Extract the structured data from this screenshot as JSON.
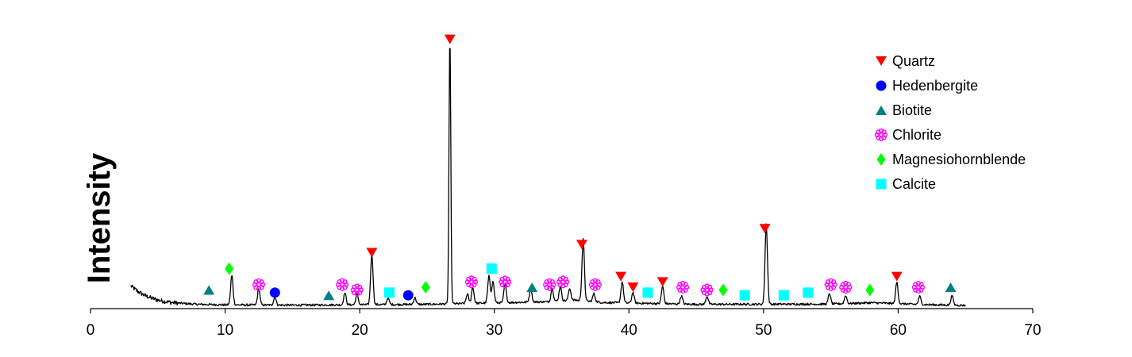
{
  "chart_data": {
    "type": "line",
    "title": "",
    "xlabel": "",
    "ylabel": "Intensity",
    "xlim": [
      0,
      70
    ],
    "ylim": [
      0,
      100
    ],
    "x_ticks": [
      "0",
      "10",
      "20",
      "30",
      "40",
      "50",
      "60",
      "70"
    ],
    "y_ticks_shown": false,
    "grid": false,
    "legend_position": "top-right",
    "pattern_x_range": [
      3,
      65
    ],
    "background": {
      "decay": [
        [
          3,
          8.5
        ],
        [
          3.5,
          6.5
        ],
        [
          4,
          5.0
        ],
        [
          4.5,
          4.0
        ],
        [
          5,
          3.2
        ],
        [
          5.5,
          2.7
        ],
        [
          6,
          2.3
        ],
        [
          7,
          1.9
        ],
        [
          8,
          1.6
        ],
        [
          10,
          1.4
        ],
        [
          15,
          1.3
        ],
        [
          25,
          1.6
        ],
        [
          34,
          2.6
        ],
        [
          36,
          3.2
        ],
        [
          38,
          2.3
        ],
        [
          45,
          1.6
        ],
        [
          55,
          1.7
        ],
        [
          58,
          2.2
        ],
        [
          62,
          1.5
        ],
        [
          65,
          1.2
        ]
      ]
    },
    "pattern_peaks": [
      {
        "x": 10.5,
        "y": 11
      },
      {
        "x": 12.5,
        "y": 6
      },
      {
        "x": 13.7,
        "y": 3
      },
      {
        "x": 18.9,
        "y": 4.5
      },
      {
        "x": 19.8,
        "y": 4
      },
      {
        "x": 20.9,
        "y": 19
      },
      {
        "x": 22.1,
        "y": 2.5
      },
      {
        "x": 24.1,
        "y": 2.5
      },
      {
        "x": 26.7,
        "y": 100
      },
      {
        "x": 28.0,
        "y": 3.5
      },
      {
        "x": 28.4,
        "y": 6
      },
      {
        "x": 29.6,
        "y": 10
      },
      {
        "x": 29.9,
        "y": 8
      },
      {
        "x": 30.8,
        "y": 7
      },
      {
        "x": 32.7,
        "y": 5
      },
      {
        "x": 34.3,
        "y": 5
      },
      {
        "x": 34.9,
        "y": 5.5
      },
      {
        "x": 35.6,
        "y": 4.5
      },
      {
        "x": 36.6,
        "y": 23
      },
      {
        "x": 37.4,
        "y": 3
      },
      {
        "x": 39.5,
        "y": 8
      },
      {
        "x": 40.3,
        "y": 4
      },
      {
        "x": 42.5,
        "y": 6.5
      },
      {
        "x": 43.9,
        "y": 3
      },
      {
        "x": 45.8,
        "y": 3
      },
      {
        "x": 50.2,
        "y": 30
      },
      {
        "x": 54.9,
        "y": 4
      },
      {
        "x": 56.1,
        "y": 3
      },
      {
        "x": 59.9,
        "y": 8
      },
      {
        "x": 61.6,
        "y": 3
      },
      {
        "x": 64.0,
        "y": 3.5
      }
    ],
    "phase_markers": [
      {
        "phase": "Quartz",
        "x": [
          20.9,
          26.7,
          36.5,
          39.4,
          40.3,
          42.5,
          50.1,
          59.9
        ],
        "y": [
          21,
          101,
          24,
          12,
          8,
          10,
          30,
          12
        ]
      },
      {
        "phase": "Hedenbergite",
        "x": [
          13.7,
          23.6
        ],
        "y": [
          6,
          5
        ]
      },
      {
        "phase": "Biotite",
        "x": [
          8.8,
          17.7,
          32.8,
          63.9
        ],
        "y": [
          7,
          5,
          8,
          8
        ]
      },
      {
        "phase": "Chlorite",
        "x": [
          12.5,
          18.7,
          19.8,
          28.3,
          30.8,
          34.1,
          35.1,
          37.5,
          44.0,
          45.8,
          55.0,
          56.1,
          61.5
        ],
        "y": [
          9,
          9,
          7,
          10,
          10,
          9,
          10,
          9,
          8,
          7,
          9,
          8,
          8
        ]
      },
      {
        "phase": "Magnesiohornblende",
        "x": [
          10.3,
          24.9,
          47.0,
          57.9
        ],
        "y": [
          15,
          8,
          7,
          7
        ]
      },
      {
        "phase": "Calcite",
        "x": [
          22.2,
          29.8,
          41.4,
          48.6,
          51.5,
          53.3
        ],
        "y": [
          6,
          15,
          6,
          5,
          5,
          6
        ]
      }
    ],
    "legend": [
      {
        "label": "Quartz",
        "symbol": "triangle-down",
        "color": "#ff0000"
      },
      {
        "label": "Hedenbergite",
        "symbol": "circle",
        "color": "#0000ff"
      },
      {
        "label": "Biotite",
        "symbol": "triangle-up",
        "color": "#008080"
      },
      {
        "label": "Chlorite",
        "symbol": "flower",
        "color": "#ff00ff"
      },
      {
        "label": "Magnesiohornblende",
        "symbol": "diamond",
        "color": "#00ff00"
      },
      {
        "label": "Calcite",
        "symbol": "square",
        "color": "#00ffff"
      }
    ],
    "line_color": "#000000"
  }
}
